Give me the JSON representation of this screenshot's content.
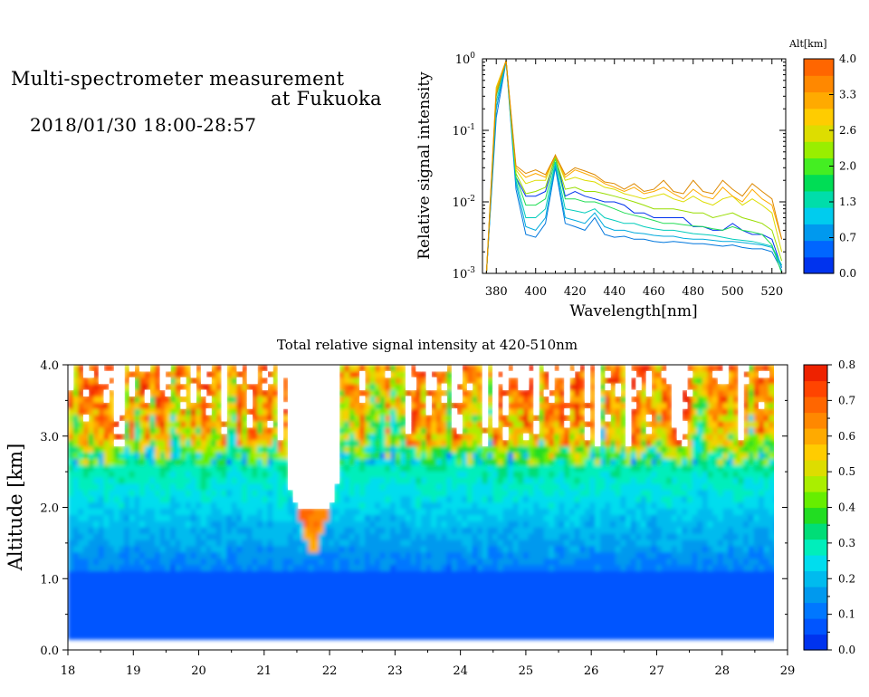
{
  "header": {
    "title_line1": "Multi-spectrometer measurement",
    "title_line2": "at Fukuoka",
    "date_range": "2018/01/30 18:00-28:57"
  },
  "chart_data": [
    {
      "type": "line",
      "xlabel": "Wavelength[nm]",
      "ylabel": "Relative signal intensity",
      "xlim": [
        373,
        527
      ],
      "ylim": [
        0.001,
        1
      ],
      "yscale": "log",
      "x_ticks": [
        380,
        400,
        420,
        440,
        460,
        480,
        500,
        520
      ],
      "y_ticks": [
        {
          "value": 0.001,
          "base": "10",
          "exp": "-3"
        },
        {
          "value": 0.01,
          "base": "10",
          "exp": "-2"
        },
        {
          "value": 0.1,
          "base": "10",
          "exp": "-1"
        },
        {
          "value": 1,
          "base": "10",
          "exp": "0"
        }
      ],
      "x": [
        375,
        380,
        385,
        390,
        395,
        400,
        405,
        410,
        415,
        420,
        425,
        430,
        435,
        440,
        445,
        450,
        455,
        460,
        465,
        470,
        475,
        480,
        485,
        490,
        495,
        500,
        505,
        510,
        515,
        520,
        525
      ],
      "series": [
        {
          "color": "#0033ee",
          "values": [
            0.001,
            0.2,
            0.95,
            0.022,
            0.012,
            0.012,
            0.014,
            0.045,
            0.012,
            0.014,
            0.012,
            0.011,
            0.01,
            0.01,
            0.009,
            0.007,
            0.007,
            0.006,
            0.006,
            0.006,
            0.006,
            0.0045,
            0.0045,
            0.004,
            0.004,
            0.005,
            0.004,
            0.0035,
            0.0035,
            0.003,
            0.0012
          ]
        },
        {
          "color": "#0077dd",
          "values": [
            0.001,
            0.15,
            0.92,
            0.015,
            0.0035,
            0.0032,
            0.005,
            0.03,
            0.005,
            0.0045,
            0.004,
            0.006,
            0.0035,
            0.0032,
            0.0033,
            0.003,
            0.003,
            0.0028,
            0.0027,
            0.0028,
            0.0027,
            0.0026,
            0.0026,
            0.0025,
            0.0024,
            0.0025,
            0.0023,
            0.0022,
            0.0022,
            0.002,
            0.0011
          ]
        },
        {
          "color": "#00aadd",
          "values": [
            0.001,
            0.2,
            0.93,
            0.018,
            0.0045,
            0.004,
            0.006,
            0.033,
            0.006,
            0.0055,
            0.005,
            0.007,
            0.0045,
            0.004,
            0.004,
            0.0037,
            0.0036,
            0.0034,
            0.0033,
            0.0033,
            0.0031,
            0.003,
            0.003,
            0.0029,
            0.0028,
            0.0028,
            0.0027,
            0.0026,
            0.0025,
            0.0023,
            0.0012
          ]
        },
        {
          "color": "#00ccbb",
          "values": [
            0.001,
            0.25,
            0.94,
            0.02,
            0.006,
            0.006,
            0.008,
            0.036,
            0.008,
            0.0075,
            0.007,
            0.008,
            0.006,
            0.0055,
            0.005,
            0.005,
            0.0045,
            0.0042,
            0.004,
            0.004,
            0.0038,
            0.0036,
            0.0035,
            0.0034,
            0.0032,
            0.003,
            0.0029,
            0.0028,
            0.0026,
            0.0024,
            0.0013
          ]
        },
        {
          "color": "#22dd55",
          "values": [
            0.001,
            0.3,
            0.95,
            0.022,
            0.009,
            0.009,
            0.011,
            0.04,
            0.011,
            0.011,
            0.01,
            0.01,
            0.009,
            0.008,
            0.007,
            0.0065,
            0.006,
            0.0055,
            0.005,
            0.005,
            0.0048,
            0.0046,
            0.0045,
            0.0042,
            0.004,
            0.0045,
            0.004,
            0.0038,
            0.0035,
            0.0025,
            0.001
          ]
        },
        {
          "color": "#99dd00",
          "values": [
            0.001,
            0.35,
            0.95,
            0.025,
            0.013,
            0.014,
            0.016,
            0.042,
            0.015,
            0.016,
            0.014,
            0.014,
            0.013,
            0.012,
            0.011,
            0.01,
            0.009,
            0.008,
            0.008,
            0.008,
            0.0075,
            0.007,
            0.007,
            0.006,
            0.0065,
            0.007,
            0.006,
            0.0055,
            0.005,
            0.004,
            0.0015
          ]
        },
        {
          "color": "#dddd00",
          "values": [
            0.001,
            0.4,
            0.95,
            0.028,
            0.018,
            0.02,
            0.02,
            0.045,
            0.02,
            0.022,
            0.02,
            0.019,
            0.016,
            0.015,
            0.013,
            0.012,
            0.011,
            0.012,
            0.013,
            0.011,
            0.01,
            0.012,
            0.01,
            0.009,
            0.011,
            0.012,
            0.009,
            0.011,
            0.009,
            0.007,
            0.002
          ]
        },
        {
          "color": "#ffaa00",
          "values": [
            0.001,
            0.38,
            0.95,
            0.03,
            0.022,
            0.025,
            0.022,
            0.045,
            0.022,
            0.028,
            0.025,
            0.022,
            0.018,
            0.016,
            0.014,
            0.016,
            0.013,
            0.014,
            0.016,
            0.013,
            0.011,
            0.015,
            0.012,
            0.011,
            0.016,
            0.012,
            0.01,
            0.015,
            0.011,
            0.009,
            0.003
          ]
        },
        {
          "color": "#dd8800",
          "values": [
            0.001,
            0.32,
            0.95,
            0.032,
            0.025,
            0.028,
            0.024,
            0.045,
            0.024,
            0.03,
            0.027,
            0.024,
            0.019,
            0.018,
            0.015,
            0.018,
            0.014,
            0.015,
            0.02,
            0.014,
            0.013,
            0.02,
            0.014,
            0.013,
            0.02,
            0.015,
            0.012,
            0.018,
            0.014,
            0.011,
            0.003
          ]
        }
      ]
    },
    {
      "type": "heatmap",
      "title": "Total relative signal intensity at 420-510nm",
      "ylabel": "Altitude [km]",
      "xlim": [
        18,
        29
      ],
      "ylim": [
        0.0,
        4.0
      ],
      "x_ticks": [
        "18",
        "19",
        "20",
        "21",
        "22",
        "23",
        "24",
        "25",
        "26",
        "27",
        "28",
        "29"
      ],
      "y_ticks": [
        "0.0",
        "1.0",
        "2.0",
        "3.0",
        "4.0"
      ],
      "data_extent_x": [
        18,
        28.95
      ],
      "data_extent_y": [
        0.15,
        4.0
      ],
      "description": "Values ~0.05-0.1 below 1.2 km; ~0.15-0.3 between 1.5 and 2.5 km; 0.4-0.8+ (white = over scale) between 2.8 and 4.0 km, with a deep plume near 21.5-22 h reaching down to 1.3 km"
    }
  ],
  "colorbars": [
    {
      "label": "Alt[km]",
      "ticks": [
        "0.0",
        "0.7",
        "1.3",
        "2.0",
        "2.6",
        "3.3",
        "4.0"
      ],
      "colors": [
        "#0033ee",
        "#0066ff",
        "#0099ee",
        "#00ccee",
        "#00ddaa",
        "#00dd55",
        "#44ee22",
        "#99ee00",
        "#dddd00",
        "#ffcc00",
        "#ffaa00",
        "#ff8800",
        "#ff6600"
      ]
    },
    {
      "ticks": [
        "0.0",
        "0.1",
        "0.2",
        "0.3",
        "0.4",
        "0.5",
        "0.6",
        "0.7",
        "0.8"
      ],
      "colors": [
        "#0033ee",
        "#0055ff",
        "#0077ff",
        "#0099ee",
        "#00bbee",
        "#00ddee",
        "#00eebb",
        "#00dd77",
        "#22dd22",
        "#66ee00",
        "#aaee00",
        "#dddd00",
        "#ffcc00",
        "#ffaa00",
        "#ff8800",
        "#ff6600",
        "#ff4400",
        "#ee2200"
      ]
    }
  ]
}
